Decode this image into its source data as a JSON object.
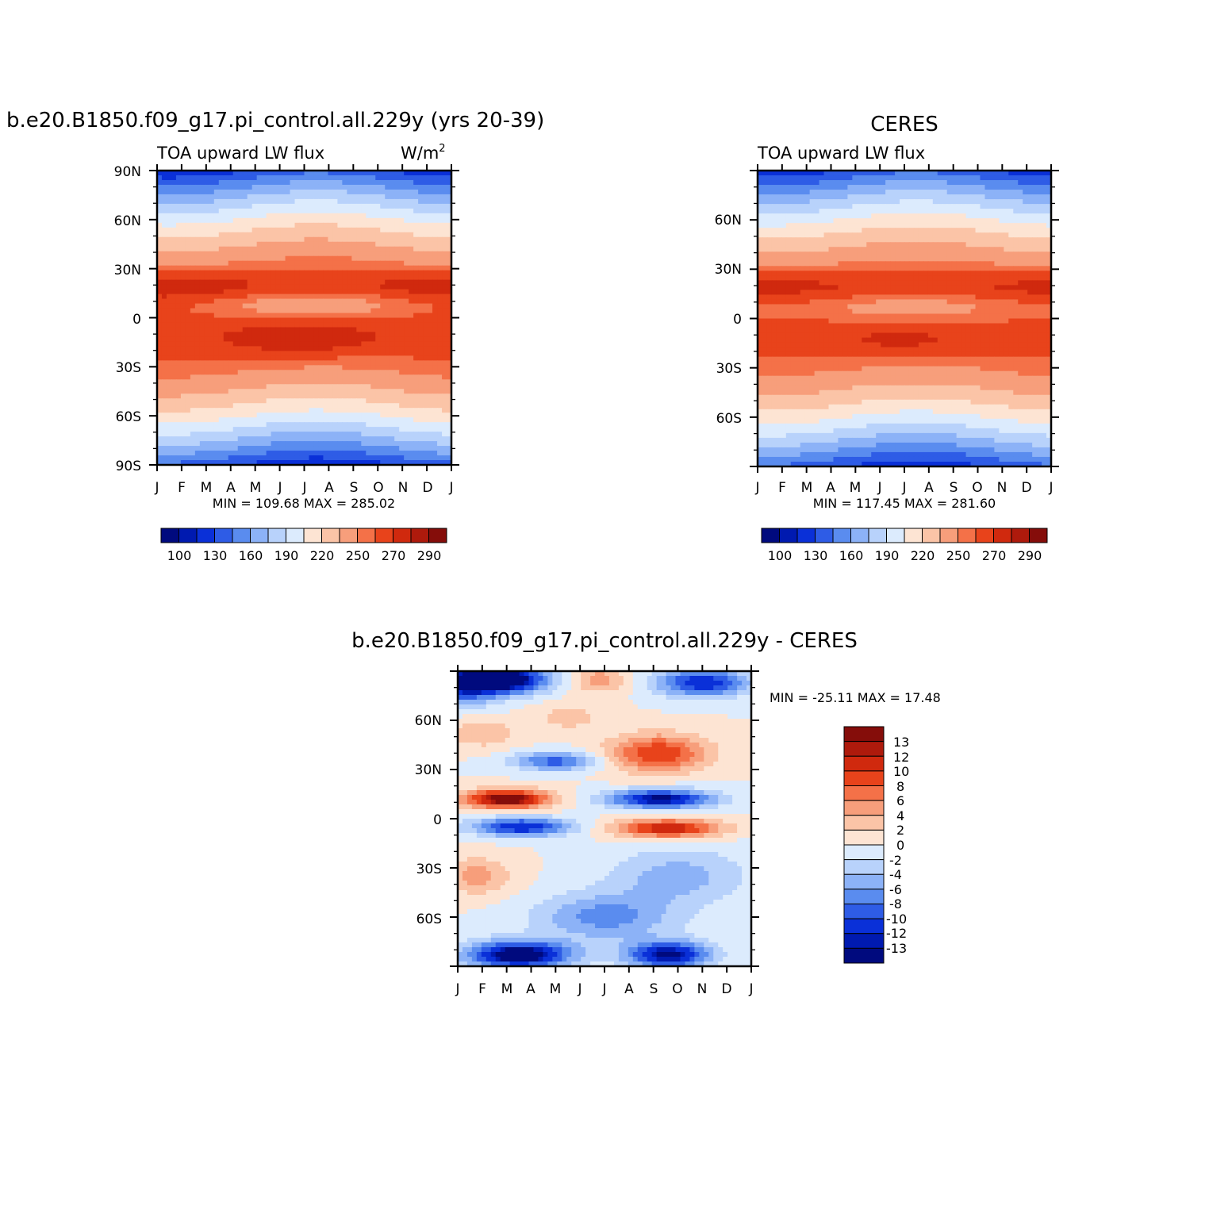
{
  "colors": {
    "abs_palette": [
      "#000a7e",
      "#001ab0",
      "#0a30d8",
      "#2e5ce6",
      "#5a8cef",
      "#8cb2f7",
      "#b8d2fb",
      "#dcebfd",
      "#fde4d3",
      "#fbc4a7",
      "#f79e7b",
      "#f47148",
      "#e8431b",
      "#d0290e",
      "#ae1a0c",
      "#850d0a"
    ],
    "diff_palette": [
      "#000a7e",
      "#001ab0",
      "#0a30d8",
      "#2e5ce6",
      "#5a8cef",
      "#8cb2f7",
      "#b8d2fb",
      "#dcebfd",
      "#fde4d3",
      "#fbc4a7",
      "#f79e7b",
      "#f47148",
      "#e8431b",
      "#d0290e",
      "#ae1a0c",
      "#850d0a"
    ]
  },
  "chart_data": [
    {
      "type": "heatmap",
      "title": "b.e20.B1850.f09_g17.pi_control.all.229y (yrs 20-39)",
      "subtitle_left": "TOA upward LW flux",
      "units": "W/m",
      "units_sup": "2",
      "x_tick_labels": [
        "J",
        "F",
        "M",
        "A",
        "M",
        "J",
        "J",
        "A",
        "S",
        "O",
        "N",
        "D",
        "J"
      ],
      "y_tick_labels": [
        {
          "lat": 90,
          "label": "90N"
        },
        {
          "lat": 60,
          "label": "60N"
        },
        {
          "lat": 30,
          "label": "30N"
        },
        {
          "lat": 0,
          "label": "0"
        },
        {
          "lat": -30,
          "label": "30S"
        },
        {
          "lat": -60,
          "label": "60S"
        },
        {
          "lat": -90,
          "label": "90S"
        }
      ],
      "ylim": [
        -90,
        90
      ],
      "stats": "MIN =  109.68  MAX =  285.02",
      "colorbar_labels": [
        "100",
        "130",
        "160",
        "190",
        "220",
        "250",
        "270",
        "290"
      ],
      "field": "model"
    },
    {
      "type": "heatmap",
      "title": "CERES",
      "subtitle_left": "TOA upward LW flux",
      "x_tick_labels": [
        "J",
        "F",
        "M",
        "A",
        "M",
        "J",
        "J",
        "A",
        "S",
        "O",
        "N",
        "D",
        "J"
      ],
      "y_tick_labels": [
        {
          "lat": 60,
          "label": "60N"
        },
        {
          "lat": 30,
          "label": "30N"
        },
        {
          "lat": 0,
          "label": "0"
        },
        {
          "lat": -30,
          "label": "30S"
        },
        {
          "lat": -60,
          "label": "60S"
        }
      ],
      "ylim": [
        -90,
        90
      ],
      "stats": "MIN =  117.45  MAX =  281.60",
      "colorbar_labels": [
        "100",
        "130",
        "160",
        "190",
        "220",
        "250",
        "270",
        "290"
      ],
      "field": "obs"
    },
    {
      "type": "heatmap",
      "title": "b.e20.B1850.f09_g17.pi_control.all.229y - CERES",
      "x_tick_labels": [
        "J",
        "F",
        "M",
        "A",
        "M",
        "J",
        "J",
        "A",
        "S",
        "O",
        "N",
        "D",
        "J"
      ],
      "y_tick_labels": [
        {
          "lat": 60,
          "label": "60N"
        },
        {
          "lat": 30,
          "label": "30N"
        },
        {
          "lat": 0,
          "label": "0"
        },
        {
          "lat": -30,
          "label": "30S"
        },
        {
          "lat": -60,
          "label": "60S"
        }
      ],
      "ylim": [
        -90,
        90
      ],
      "stats": "MIN = -25.11  MAX =   17.48",
      "colorbar_labels": [
        "13",
        "12",
        "10",
        "8",
        "6",
        "4",
        "2",
        "0",
        "-2",
        "-4",
        "-6",
        "-8",
        "-10",
        "-12",
        "-13"
      ],
      "field": "diff"
    }
  ]
}
